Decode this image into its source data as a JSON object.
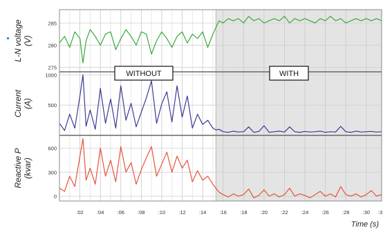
{
  "chart_data": {
    "type": "line",
    "xlabel": "Time (s)",
    "x_ticks": [
      ":02",
      ":04",
      ":06",
      ":08",
      ":10",
      ":12",
      ":14",
      ":16",
      ":18",
      ":20",
      ":22",
      ":24",
      ":26",
      ":28",
      ":30",
      ":3"
    ],
    "xlim": [
      0,
      31.5
    ],
    "grid": true,
    "regions": [
      {
        "label": "WITHOUT",
        "x_start": 0,
        "x_end": 15.3,
        "shade": "#ffffff"
      },
      {
        "label": "WITH",
        "x_start": 15.3,
        "x_end": 31.5,
        "shade": "#e4e4e4"
      }
    ],
    "panels": [
      {
        "ylabel_line1": "L-N voltage",
        "ylabel_line2": "(V)",
        "ylim": [
          274,
          288
        ],
        "yticks": [
          {
            "value": 275,
            "label": "275"
          },
          {
            "value": 280,
            "label": "280"
          },
          {
            "value": 285,
            "label": "285"
          }
        ],
        "color": "#3aa83a",
        "x": [
          0,
          0.5,
          1,
          1.5,
          2,
          2.3,
          2.6,
          3,
          3.5,
          4,
          4.5,
          5,
          5.5,
          6,
          6.5,
          7,
          7.5,
          8,
          8.5,
          9,
          9.5,
          10,
          10.5,
          11,
          11.5,
          12,
          12.5,
          13,
          13.5,
          14,
          14.5,
          15,
          15.3,
          15.6,
          16,
          16.5,
          17,
          17.5,
          18,
          18.5,
          19,
          19.5,
          20,
          20.5,
          21,
          21.5,
          22,
          22.5,
          23,
          23.5,
          24,
          24.5,
          25,
          25.5,
          26,
          26.5,
          27,
          27.5,
          28,
          28.5,
          29,
          29.5,
          30,
          30.5,
          31,
          31.5
        ],
        "values": [
          280.5,
          282,
          279.5,
          283,
          281.5,
          276,
          281,
          283.5,
          282,
          280,
          282.5,
          283,
          279,
          281.5,
          283.5,
          282,
          280,
          283,
          282.5,
          278,
          281,
          283,
          281.5,
          279.5,
          282,
          283,
          280.5,
          282.5,
          281.5,
          283,
          279.5,
          282.5,
          284,
          285.5,
          285,
          286,
          285.5,
          286,
          285,
          286.5,
          285.5,
          286,
          285,
          285.5,
          286,
          285.5,
          286.5,
          285,
          286,
          285.5,
          286,
          285.5,
          285,
          286,
          285.5,
          286.5,
          285.5,
          286,
          285,
          285.5,
          286,
          285.5,
          286,
          285.5,
          286,
          285.5
        ]
      },
      {
        "ylabel_line1": "Current",
        "ylabel_line2": "(A)",
        "ylim": [
          0,
          1050
        ],
        "yticks": [
          {
            "value": 500,
            "label": "500"
          },
          {
            "value": 1000,
            "label": "1000"
          }
        ],
        "color": "#3b3b94",
        "x": [
          0,
          0.5,
          1,
          1.5,
          2,
          2.3,
          2.6,
          3,
          3.5,
          4,
          4.5,
          5,
          5.5,
          6,
          6.5,
          7,
          7.5,
          8,
          8.5,
          9,
          9.5,
          10,
          10.5,
          11,
          11.5,
          12,
          12.5,
          13,
          13.5,
          14,
          14.5,
          15,
          15.3,
          15.6,
          16,
          16.5,
          17,
          17.5,
          18,
          18.5,
          19,
          19.5,
          20,
          20.5,
          21,
          21.5,
          22,
          22.5,
          23,
          23.5,
          24,
          24.5,
          25,
          25.5,
          26,
          26.5,
          27,
          27.5,
          28,
          28.5,
          29,
          29.5,
          30,
          30.5,
          31,
          31.5
        ],
        "values": [
          200,
          80,
          350,
          120,
          650,
          1000,
          150,
          420,
          100,
          780,
          200,
          600,
          120,
          820,
          250,
          530,
          140,
          380,
          620,
          900,
          200,
          520,
          720,
          220,
          820,
          300,
          650,
          120,
          350,
          180,
          250,
          120,
          90,
          100,
          60,
          50,
          70,
          55,
          60,
          140,
          50,
          65,
          160,
          50,
          60,
          70,
          55,
          140,
          60,
          50,
          65,
          55,
          60,
          70,
          50,
          60,
          55,
          150,
          60,
          50,
          70,
          55,
          60,
          65,
          55,
          60
        ]
      },
      {
        "ylabel_line1": "Reactive P",
        "ylabel_line2": "(kvar)",
        "ylim": [
          -60,
          760
        ],
        "yticks": [
          {
            "value": 0,
            "label": "0"
          },
          {
            "value": 300,
            "label": "300"
          },
          {
            "value": 600,
            "label": "600"
          }
        ],
        "color": "#e5533a",
        "x": [
          0,
          0.5,
          1,
          1.5,
          2,
          2.3,
          2.6,
          3,
          3.5,
          4,
          4.5,
          5,
          5.5,
          6,
          6.5,
          7,
          7.5,
          8,
          8.5,
          9,
          9.5,
          10,
          10.5,
          11,
          11.5,
          12,
          12.5,
          13,
          13.5,
          14,
          14.5,
          15,
          15.3,
          15.6,
          16,
          16.5,
          17,
          17.5,
          18,
          18.5,
          19,
          19.5,
          20,
          20.5,
          21,
          21.5,
          22,
          22.5,
          23,
          23.5,
          24,
          24.5,
          25,
          25.5,
          26,
          26.5,
          27,
          27.5,
          28,
          28.5,
          29,
          29.5,
          30,
          30.5,
          31,
          31.5
        ],
        "values": [
          100,
          60,
          250,
          120,
          500,
          720,
          200,
          350,
          150,
          600,
          250,
          450,
          180,
          620,
          300,
          420,
          150,
          330,
          480,
          620,
          250,
          400,
          550,
          300,
          500,
          350,
          450,
          180,
          320,
          200,
          250,
          150,
          100,
          50,
          20,
          -10,
          30,
          0,
          20,
          90,
          -20,
          10,
          80,
          0,
          30,
          -10,
          20,
          100,
          0,
          30,
          10,
          -20,
          20,
          60,
          0,
          30,
          -10,
          120,
          20,
          0,
          30,
          -10,
          20,
          70,
          0,
          20
        ]
      }
    ]
  }
}
